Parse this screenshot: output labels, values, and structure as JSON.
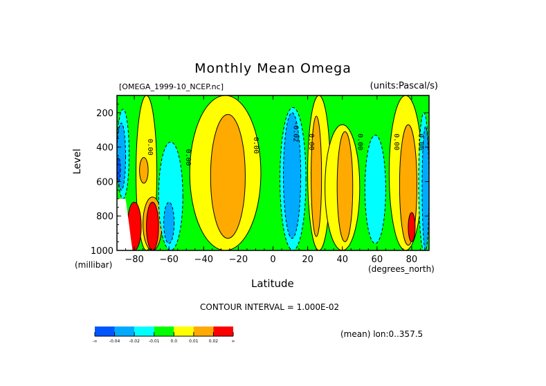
{
  "chart_data": {
    "type": "heatmap",
    "subtype": "filled-contour",
    "title": "Monthly Mean Omega",
    "subtitle_left": "[OMEGA_1999-10_NCEP.nc]",
    "subtitle_right": "(units:Pascal/s)",
    "xlabel": "Latitude",
    "xunits": "(degrees_north)",
    "ylabel": "Level",
    "yunits": "(millibar)",
    "xlim": [
      -90,
      90
    ],
    "ylim": [
      1000,
      100
    ],
    "x_ticks": [
      -80,
      -60,
      -40,
      -20,
      0,
      20,
      40,
      60,
      80
    ],
    "y_ticks": [
      200,
      400,
      600,
      800,
      1000
    ],
    "contour_interval": "CONTOUR INTERVAL = 1.000E-02",
    "averaging_note": "(mean) lon:0..357.5",
    "contour_labels": [
      {
        "lat": -72,
        "level": 400,
        "text": "0.00"
      },
      {
        "lat": -50,
        "level": 460,
        "text": "0.00"
      },
      {
        "lat": -11,
        "level": 390,
        "text": "0.00"
      },
      {
        "lat": 12,
        "level": 310,
        "text": "-0.02"
      },
      {
        "lat": 21,
        "level": 370,
        "text": "0.00"
      },
      {
        "lat": 49,
        "level": 370,
        "text": "0.00"
      },
      {
        "lat": 70,
        "level": 370,
        "text": "0.00"
      },
      {
        "lat": 84,
        "level": 370,
        "text": "0.00"
      }
    ],
    "colorbar": {
      "bins": [
        {
          "range": "-inf to -0.04",
          "color": "#0055ff"
        },
        {
          "range": "-0.04 to -0.02",
          "color": "#00aaff"
        },
        {
          "range": "-0.02 to -0.01",
          "color": "#00ffff"
        },
        {
          "range": "-0.01 to 0.0",
          "color": "#00ff00"
        },
        {
          "range": "0.0 to 0.01",
          "color": "#ffff00"
        },
        {
          "range": "0.01 to 0.02",
          "color": "#ffaa00"
        },
        {
          "range": "0.02 to inf",
          "color": "#ff0000"
        }
      ],
      "tick_labels": [
        "-∞",
        "-0.04",
        "-0.02",
        "-0.01",
        "0.0",
        "0.01",
        "0.02",
        "∞"
      ]
    },
    "background_color": "#00ff00",
    "features": [
      {
        "lat_min": -90,
        "lat_max": -83,
        "level_top": 180,
        "level_bottom": 700,
        "color": "#00ffff"
      },
      {
        "lat_min": -90,
        "lat_max": -85,
        "level_top": 260,
        "level_bottom": 650,
        "color": "#00aaff"
      },
      {
        "lat_min": -90,
        "lat_max": -88,
        "level_top": 460,
        "level_bottom": 600,
        "color": "#0055ff"
      },
      {
        "lat_min": -79,
        "lat_max": -67,
        "level_top": 100,
        "level_bottom": 1000,
        "color": "#ffff00"
      },
      {
        "lat_min": -77,
        "lat_max": -72,
        "level_top": 460,
        "level_bottom": 610,
        "color": "#ffaa00"
      },
      {
        "lat_min": -75,
        "lat_max": -64,
        "level_top": 690,
        "level_bottom": 1000,
        "color": "#ffaa00"
      },
      {
        "lat_min": -73,
        "lat_max": -66,
        "level_top": 720,
        "level_bottom": 1000,
        "color": "#ff0000"
      },
      {
        "lat_min": -84,
        "lat_max": -76,
        "level_top": 720,
        "level_bottom": 1000,
        "color": "#ff0000"
      },
      {
        "lat_min": -66,
        "lat_max": -52,
        "level_top": 370,
        "level_bottom": 1000,
        "color": "#00ffff"
      },
      {
        "lat_min": -63,
        "lat_max": -57,
        "level_top": 720,
        "level_bottom": 960,
        "color": "#00aaff"
      },
      {
        "lat_min": -48,
        "lat_max": -7,
        "level_top": 100,
        "level_bottom": 1000,
        "color": "#ffff00"
      },
      {
        "lat_min": -36,
        "lat_max": -16,
        "level_top": 210,
        "level_bottom": 930,
        "color": "#ffaa00"
      },
      {
        "lat_min": 4,
        "lat_max": 19,
        "level_top": 170,
        "level_bottom": 1000,
        "color": "#00ffff"
      },
      {
        "lat_min": 6,
        "lat_max": 16,
        "level_top": 200,
        "level_bottom": 930,
        "color": "#00aaff"
      },
      {
        "lat_min": 20,
        "lat_max": 33,
        "level_top": 100,
        "level_bottom": 1000,
        "color": "#ffff00"
      },
      {
        "lat_min": 22,
        "lat_max": 28,
        "level_top": 220,
        "level_bottom": 920,
        "color": "#ffaa00"
      },
      {
        "lat_min": 30,
        "lat_max": 50,
        "level_top": 270,
        "level_bottom": 1000,
        "color": "#ffff00"
      },
      {
        "lat_min": 37,
        "lat_max": 46,
        "level_top": 310,
        "level_bottom": 950,
        "color": "#ffaa00"
      },
      {
        "lat_min": 53,
        "lat_max": 65,
        "level_top": 330,
        "level_bottom": 960,
        "color": "#00ffff"
      },
      {
        "lat_min": 67,
        "lat_max": 86,
        "level_top": 100,
        "level_bottom": 1000,
        "color": "#ffff00"
      },
      {
        "lat_min": 73,
        "lat_max": 83,
        "level_top": 270,
        "level_bottom": 970,
        "color": "#ffaa00"
      },
      {
        "lat_min": 78,
        "lat_max": 82,
        "level_top": 780,
        "level_bottom": 950,
        "color": "#ff0000"
      },
      {
        "lat_min": 84,
        "lat_max": 90,
        "level_top": 200,
        "level_bottom": 1000,
        "color": "#00ffff"
      },
      {
        "lat_min": 86,
        "lat_max": 90,
        "level_top": 280,
        "level_bottom": 1000,
        "color": "#00aaff"
      }
    ]
  }
}
